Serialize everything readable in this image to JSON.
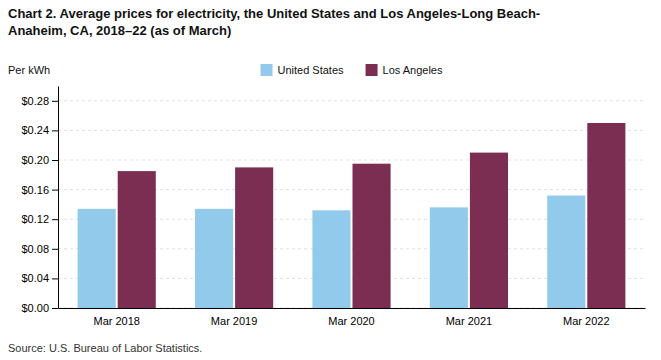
{
  "chart_data": {
    "type": "bar",
    "title": [
      "Chart 2. Average prices for electricity, the United States and Los Angeles-Long Beach-",
      "Anaheim, CA, 2018–22 (as of March)"
    ],
    "y_label": "Per kWh",
    "source": "Source: U.S. Bureau of Labor Statistics.",
    "categories": [
      "Mar 2018",
      "Mar 2019",
      "Mar 2020",
      "Mar 2021",
      "Mar 2022"
    ],
    "series": [
      {
        "name": "United States",
        "color": "#92CAEC",
        "values": [
          0.134,
          0.134,
          0.132,
          0.136,
          0.152
        ]
      },
      {
        "name": "Los Angeles",
        "color": "#7B2D52",
        "values": [
          0.185,
          0.19,
          0.195,
          0.21,
          0.25
        ]
      }
    ],
    "ylim": [
      0,
      0.3
    ],
    "yticks": [
      {
        "value": 0.0,
        "label": "$0.00"
      },
      {
        "value": 0.04,
        "label": "$0.04"
      },
      {
        "value": 0.08,
        "label": "$0.08"
      },
      {
        "value": 0.12,
        "label": "$0.12"
      },
      {
        "value": 0.16,
        "label": "$0.16"
      },
      {
        "value": 0.2,
        "label": "$0.20"
      },
      {
        "value": 0.24,
        "label": "$0.24"
      },
      {
        "value": 0.28,
        "label": "$0.28"
      }
    ],
    "grid": true,
    "legend": "top"
  }
}
